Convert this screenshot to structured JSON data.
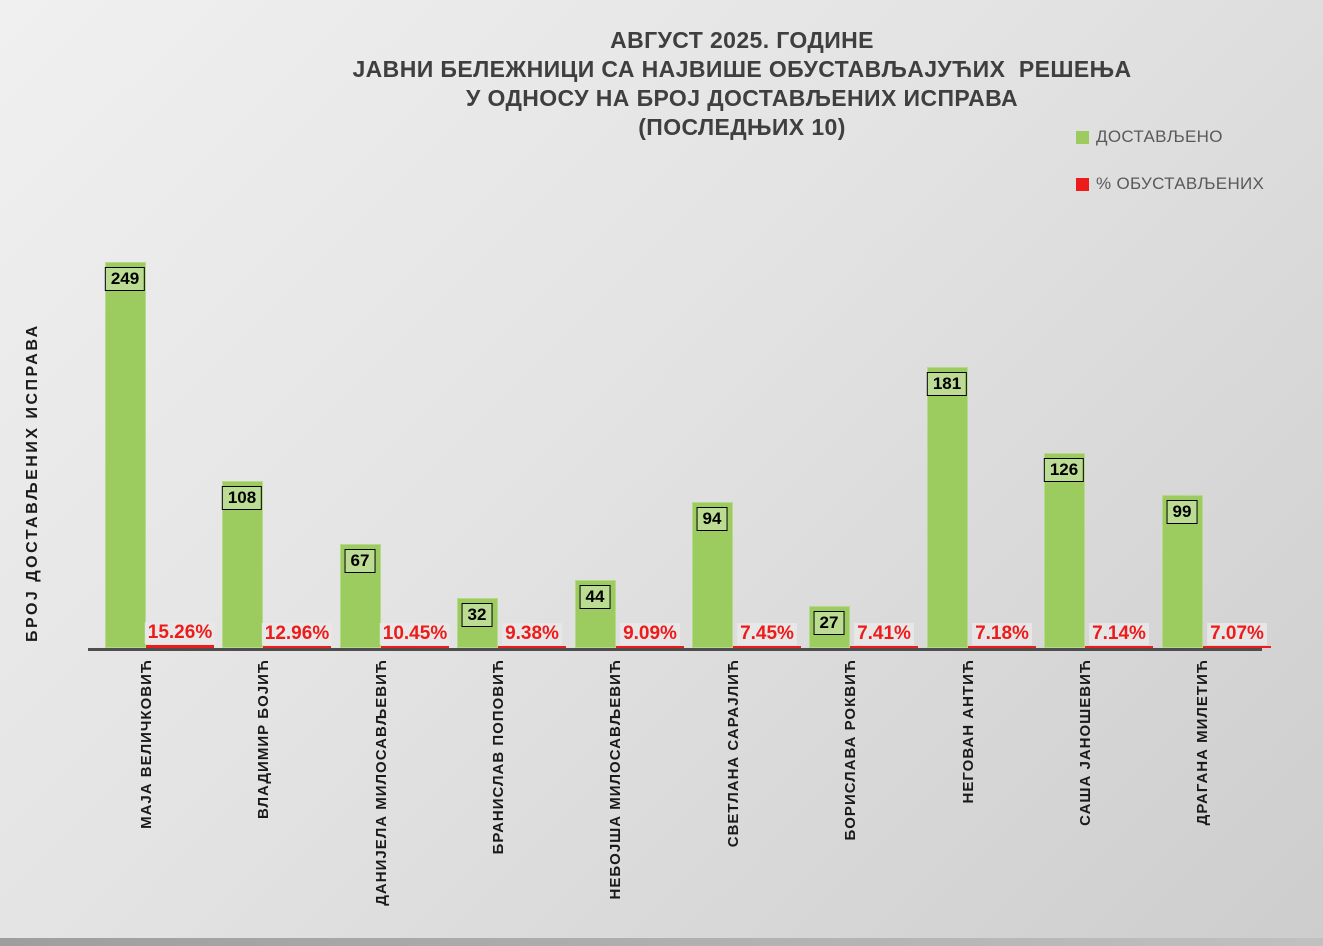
{
  "title": {
    "lines": [
      "АВГУСТ 2025. ГОДИНЕ",
      "ЈАВНИ БЕЛЕЖНИЦИ СА НАЈВИШЕ ОБУСТАВЉАЈУЋИХ  РЕШЕЊА",
      "У ОДНОСУ НА БРОЈ ДОСТАВЉЕНИХ ИСПРАВА",
      "(ПОСЛЕДЊИХ 10)"
    ]
  },
  "legend": {
    "items": [
      {
        "label": "ДОСТАВЉЕНО",
        "color": "#9ccb60"
      },
      {
        "label": "% ОБУСТАВЉЕНИХ",
        "color": "#ee1b1b"
      }
    ]
  },
  "y_axis_label": "БРОЈ ДОСТАВЉЕНИХ ИСПРАВА",
  "colors": {
    "bar_green": "#9ccb60",
    "bar_green_border": "#b7d989",
    "percent_red": "#ee1b1b",
    "axis_line": "#4d4d4d",
    "title_text": "#3f3f3f",
    "legend_text": "#595959"
  },
  "chart_data": {
    "type": "bar",
    "title": "АВГУСТ 2025. ГОДИНЕ — ЈАВНИ БЕЛЕЖНИЦИ СА НАЈВИШЕ ОБУСТАВЉАЈУЋИХ РЕШЕЊА У ОДНОСУ НА БРОЈ ДОСТАВЉЕНИХ ИСПРАВА (ПОСЛЕДЊИХ 10)",
    "xlabel": "",
    "ylabel": "БРОЈ ДОСТАВЉЕНИХ ИСПРАВА",
    "ylim": [
      0,
      258
    ],
    "grid": false,
    "legend_position": "top-right",
    "categories": [
      "МАЈА ВЕЛИЧКОВИЋ",
      "ВЛАДИМИР БОЈИЋ",
      "ДАНИЈЕЛА МИЛОСАВЉЕВИЋ",
      "БРАНИСЛАВ ПОПОВИЋ",
      "НЕБОЈША МИЛОСАВЉЕВИЋ",
      "СВЕТЛАНА САРАЈЛИЋ",
      "БОРИСЛАВА РОКВИЋ",
      "НЕГОВАН АНТИЋ",
      "САША ЈАНОШЕВИЋ",
      "ДРАГАНА МИЛЕТИЋ"
    ],
    "series": [
      {
        "name": "ДОСТАВЉЕНО",
        "color": "#9ccb60",
        "values": [
          249,
          108,
          67,
          32,
          44,
          94,
          27,
          181,
          126,
          99
        ]
      },
      {
        "name": "% ОБУСТАВЉЕНИХ",
        "color": "#ee1b1b",
        "values": [
          15.26,
          12.96,
          10.45,
          9.38,
          9.09,
          7.45,
          7.41,
          7.18,
          7.14,
          7.07
        ],
        "value_labels": [
          "15.26%",
          "12.96%",
          "10.45%",
          "9.38%",
          "9.09%",
          "7.45%",
          "7.41%",
          "7.18%",
          "7.14%",
          "7.07%"
        ]
      }
    ]
  }
}
